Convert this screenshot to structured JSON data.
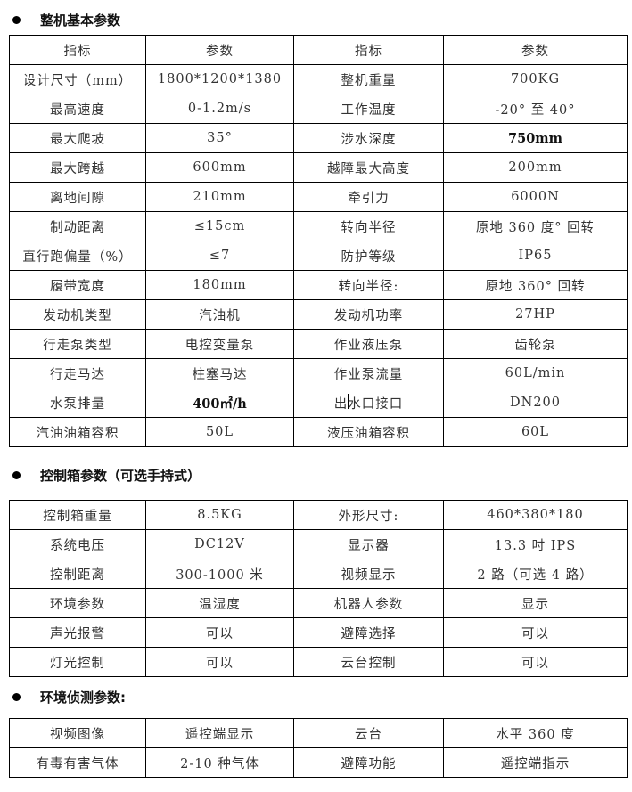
{
  "sections": [
    {
      "title": "整机基本参数",
      "rows": [
        [
          "指标",
          "参数",
          "指标",
          "参数"
        ],
        [
          "设计尺寸（mm）",
          "1800*1200*1380",
          "整机重量",
          "700KG"
        ],
        [
          "最高速度",
          "0-1.2m/s",
          "工作温度",
          "-20° 至 40°"
        ],
        [
          "最大爬坡",
          "35°",
          "涉水深度",
          "750mm"
        ],
        [
          "最大跨越",
          "600mm",
          "越障最大高度",
          "200mm"
        ],
        [
          "离地间隙",
          "210mm",
          "牵引力",
          "6000N"
        ],
        [
          "制动距离",
          "≤15cm",
          "转向半径",
          "原地 360 度° 回转"
        ],
        [
          "直行跑偏量（%）",
          "≤7",
          "防护等级",
          "IP65"
        ],
        [
          "履带宽度",
          "180mm",
          "转向半径:",
          "原地 360° 回转"
        ],
        [
          "发动机类型",
          "汽油机",
          "发动机功率",
          "27HP"
        ],
        [
          "行走泵类型",
          "电控变量泵",
          "作业液压泵",
          "齿轮泵"
        ],
        [
          "行走马达",
          "柱塞马达",
          "作业泵流量",
          "60L/min"
        ],
        [
          "水泵排量",
          "400㎡/h",
          "出水口接口",
          "DN200"
        ],
        [
          "汽油油箱容积",
          "50L",
          "液压油箱容积",
          "60L"
        ]
      ],
      "bold_cells": [
        "3.3",
        "12.1"
      ]
    },
    {
      "title": "控制箱参数（可选手持式）",
      "rows": [
        [
          "控制箱重量",
          "8.5KG",
          "外形尺寸:",
          "460*380*180"
        ],
        [
          "系统电压",
          "DC12V",
          "显示器",
          "13.3 吋 IPS"
        ],
        [
          "控制距离",
          "300-1000 米",
          "视频显示",
          "2 路（可选 4 路）"
        ],
        [
          "环境参数",
          "温湿度",
          "机器人参数",
          "显示"
        ],
        [
          "声光报警",
          "可以",
          "避障选择",
          "可以"
        ],
        [
          "灯光控制",
          "可以",
          "云台控制",
          "可以"
        ]
      ],
      "bold_cells": []
    },
    {
      "title": "环境侦测参数:",
      "rows": [
        [
          "视频图像",
          "遥控端显示",
          "云台",
          "水平 360 度"
        ],
        [
          "有毒有害气体",
          "2-10 种气体",
          "避障功能",
          "遥控端指示"
        ]
      ],
      "bold_cells": []
    }
  ]
}
